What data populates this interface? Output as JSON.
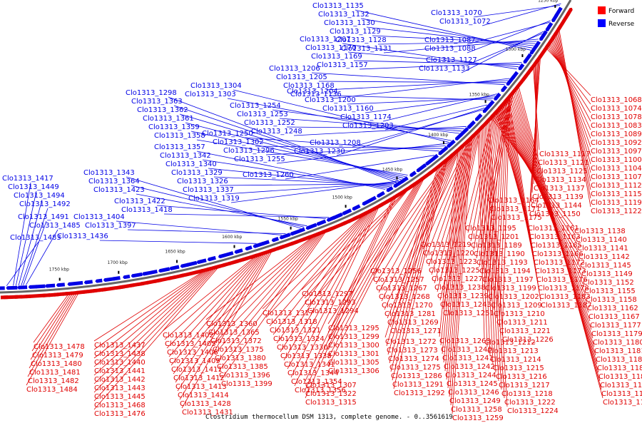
{
  "title": "Clostridium thermocellum DSM 1313, complete genome. - 0..3561619",
  "legend": [
    {
      "label": "Forward",
      "color": "#ff0000"
    },
    {
      "label": "Reverse",
      "color": "#0000ff"
    }
  ],
  "colors": {
    "forward": "#e00000",
    "reverse": "#0000e6",
    "backbone": "#666666"
  },
  "ticks": [
    "1250 kbp",
    "1300 kbp",
    "1350 kbp",
    "1400 kbp",
    "1450 kbp",
    "1500 kbp",
    "1550 kbp",
    "1600 kbp",
    "1650 kbp",
    "1700 kbp",
    "1750 kbp"
  ],
  "reverse_labels": [
    "Clo1313_1135",
    "Clo1313_1132",
    "Clo1313_1130",
    "Clo1313_1129",
    "Clo1313_1128",
    "Clo1313_1131",
    "Clo1313_1207",
    "Clo1313_1170",
    "Clo1313_1169",
    "Clo1313_1157",
    "Clo1313_1070",
    "Clo1313_1072",
    "Clo1313_1087",
    "Clo1313_1088",
    "Clo1313_1127",
    "Clo1313_1133",
    "Clo1313_1206",
    "Clo1313_1205",
    "Clo1313_1168",
    "Clo1313_1136",
    "Clo1313_1204",
    "Clo1313_1200",
    "Clo1313_1160",
    "Clo1313_1174",
    "Clo1313_1203",
    "Clo1313_1208",
    "Clo1313_1230",
    "Clo1313_1304",
    "Clo1313_1303",
    "Clo1313_1254",
    "Clo1313_1253",
    "Clo1313_1252",
    "Clo1313_1248",
    "Clo1313_1250",
    "Clo1313_1302",
    "Clo1313_1296",
    "Clo1313_1255",
    "Clo1313_1260",
    "Clo1313_1298",
    "Clo1313_1363",
    "Clo1313_1362",
    "Clo1313_1361",
    "Clo1313_1359",
    "Clo1313_1358",
    "Clo1313_1357",
    "Clo1313_1342",
    "Clo1313_1340",
    "Clo1313_1329",
    "Clo1313_1326",
    "Clo1313_1337",
    "Clo1313_1319",
    "Clo1313_1343",
    "Clo1313_1364",
    "Clo1313_1423",
    "Clo1313_1422",
    "Clo1313_1418",
    "Clo1313_1404",
    "Clo1313_1397",
    "Clo1313_1436",
    "Clo1313_1417",
    "Clo1313_1449",
    "Clo1313_1494",
    "Clo1313_1492",
    "Clo1313_1491",
    "Clo1313_1485",
    "Clo1313_1483",
    "Clo1313_1477",
    "Clo1313_1493"
  ],
  "forward_labels": [
    "Clo1313_1068",
    "Clo1313_1074",
    "Clo1313_1078",
    "Clo1313_1083",
    "Clo1313_1089",
    "Clo1313_1092",
    "Clo1313_1097",
    "Clo1313_1100",
    "Clo1313_1104",
    "Clo1313_1107",
    "Clo1313_1112",
    "Clo1313_1115",
    "Clo1313_1119",
    "Clo1313_1122",
    "Clo1313_1117",
    "Clo1313_1121",
    "Clo1313_1125",
    "Clo1313_1134",
    "Clo1313_1137",
    "Clo1313_1139",
    "Clo1313_1144",
    "Clo1313_1150",
    "Clo1313_1138",
    "Clo1313_1140",
    "Clo1313_1141",
    "Clo1313_1142",
    "Clo1313_1145",
    "Clo1313_1149",
    "Clo1313_1152",
    "Clo1313_1155",
    "Clo1313_1158",
    "Clo1313_1162",
    "Clo1313_1167",
    "Clo1313_1177",
    "Clo1313_1179",
    "Clo1313_1180",
    "Clo1313_1181",
    "Clo1313_1182",
    "Clo1313_1185",
    "Clo1313_1188",
    "Clo1313_1191",
    "Clo1313_1196",
    "Clo1313_1198",
    "Clo1313_1164",
    "Clo1313_1171",
    "Clo1313_1175",
    "Clo1313_1161",
    "Clo1313_1163",
    "Clo1313_1165",
    "Clo1313_1166",
    "Clo1313_1172",
    "Clo1313_1173",
    "Clo1313_1176",
    "Clo1313_1178",
    "Clo1313_1183",
    "Clo1313_1187",
    "Clo1313_1195",
    "Clo1313_1201",
    "Clo1313_1189",
    "Clo1313_1190",
    "Clo1313_1193",
    "Clo1313_1194",
    "Clo1313_1197",
    "Clo1313_1199",
    "Clo1313_1202",
    "Clo1313_1209",
    "Clo1313_1210",
    "Clo1313_1211",
    "Clo1313_1221",
    "Clo1313_1226",
    "Clo1313_1212",
    "Clo1313_1213",
    "Clo1313_1214",
    "Clo1313_1215",
    "Clo1313_1216",
    "Clo1313_1217",
    "Clo1313_1218",
    "Clo1313_1222",
    "Clo1313_1224",
    "Clo1313_1219",
    "Clo1313_1220",
    "Clo1313_1223",
    "Clo1313_1225",
    "Clo1313_1227",
    "Clo1313_1238",
    "Clo1313_1239",
    "Clo1313_1243",
    "Clo1313_1251",
    "Clo1313_1263",
    "Clo1313_1240",
    "Clo1313_1241",
    "Clo1313_1242",
    "Clo1313_1244",
    "Clo1313_1245",
    "Clo1313_1246",
    "Clo1313_1249",
    "Clo1313_1258",
    "Clo1313_1259",
    "Clo1313_1256",
    "Clo1313_1257",
    "Clo1313_1267",
    "Clo1313_1268",
    "Clo1313_1270",
    "Clo1313_1281",
    "Clo1313_1269",
    "Clo1313_1271",
    "Clo1313_1272",
    "Clo1313_1273",
    "Clo1313_1274",
    "Clo1313_1275",
    "Clo1313_1286",
    "Clo1313_1291",
    "Clo1313_1292",
    "Clo1313_1297",
    "Clo1313_1293",
    "Clo1313_1294",
    "Clo1313_1295",
    "Clo1313_1299",
    "Clo1313_1300",
    "Clo1313_1301",
    "Clo1313_1305",
    "Clo1313_1306",
    "Clo1313_1307",
    "Clo1313_1322",
    "Clo1313_1315",
    "Clo1313_1317",
    "Clo1313_1318",
    "Clo1313_1321",
    "Clo1313_1324",
    "Clo1313_1330",
    "Clo1313_1338",
    "Clo1313_1341",
    "Clo1313_1344",
    "Clo1313_1354",
    "Clo1313_1356",
    "Clo1313_1360",
    "Clo1313_1365",
    "Clo1313_1372",
    "Clo1313_1375",
    "Clo1313_1380",
    "Clo1313_1385",
    "Clo1313_1396",
    "Clo1313_1399",
    "Clo1313_1402",
    "Clo1313_1405",
    "Clo1313_1406",
    "Clo1313_1409",
    "Clo1313_1411",
    "Clo1313_1412",
    "Clo1313_1413",
    "Clo1313_1414",
    "Clo1313_1428",
    "Clo1313_1431",
    "Clo1313_1437",
    "Clo1313_1438",
    "Clo1313_1440",
    "Clo1313_1441",
    "Clo1313_1442",
    "Clo1313_1443",
    "Clo1313_1445",
    "Clo1313_1468",
    "Clo1313_1476",
    "Clo1313_1478",
    "Clo1313_1479",
    "Clo1313_1480",
    "Clo1313_1481",
    "Clo1313_1482",
    "Clo1313_1484"
  ]
}
